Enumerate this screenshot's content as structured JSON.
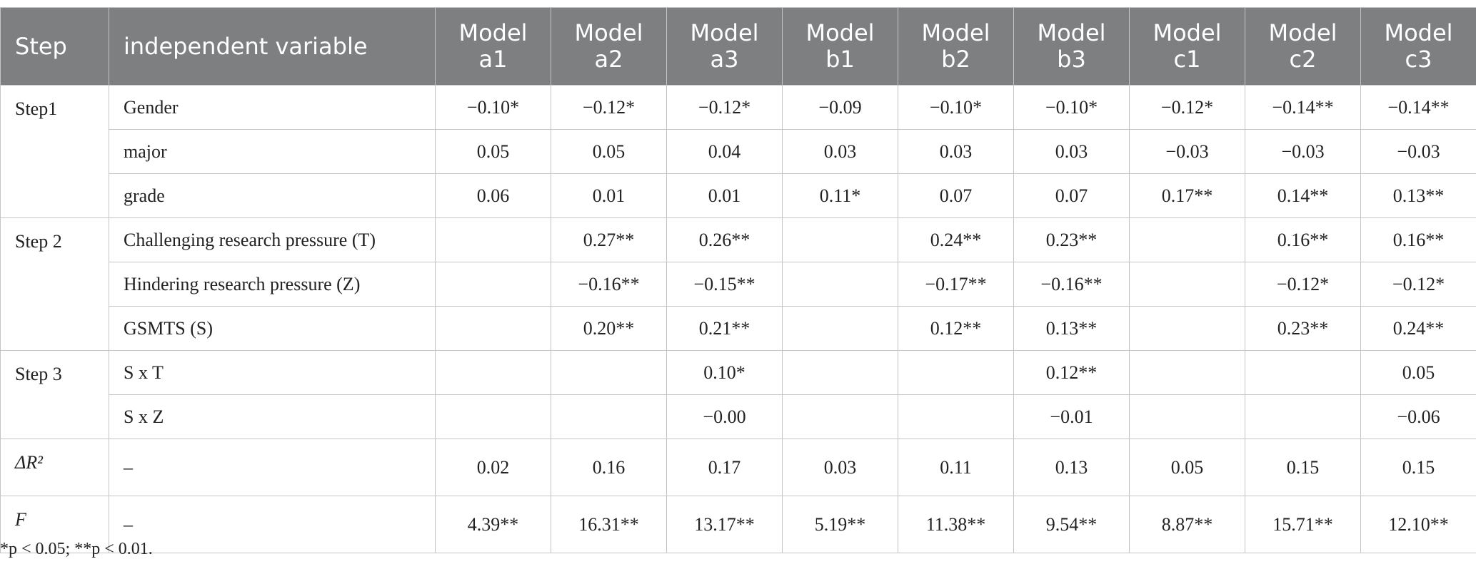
{
  "header": {
    "step": "Step",
    "variable": "independent variable",
    "models": [
      "Model a1",
      "Model a2",
      "Model a3",
      "Model b1",
      "Model b2",
      "Model b3",
      "Model c1",
      "Model c2",
      "Model c3"
    ]
  },
  "table": {
    "groups": [
      {
        "step": "Step1",
        "italic": false,
        "rows": [
          {
            "variable": "Gender",
            "values": [
              "−0.10*",
              "−0.12*",
              "−0.12*",
              "−0.09",
              "−0.10*",
              "−0.10*",
              "−0.12*",
              "−0.14**",
              "−0.14**"
            ]
          },
          {
            "variable": "major",
            "values": [
              "0.05",
              "0.05",
              "0.04",
              "0.03",
              "0.03",
              "0.03",
              "−0.03",
              "−0.03",
              "−0.03"
            ]
          },
          {
            "variable": "grade",
            "values": [
              "0.06",
              "0.01",
              "0.01",
              "0.11*",
              "0.07",
              "0.07",
              "0.17**",
              "0.14**",
              "0.13**"
            ]
          }
        ]
      },
      {
        "step": "Step 2",
        "italic": false,
        "rows": [
          {
            "variable": "Challenging research pressure (T)",
            "values": [
              null,
              "0.27**",
              "0.26**",
              null,
              "0.24**",
              "0.23**",
              null,
              "0.16**",
              "0.16**"
            ]
          },
          {
            "variable": "Hindering research pressure (Z)",
            "values": [
              null,
              "−0.16**",
              "−0.15**",
              null,
              "−0.17**",
              "−0.16**",
              null,
              "−0.12*",
              "−0.12*"
            ]
          },
          {
            "variable": "GSMTS (S)",
            "values": [
              null,
              "0.20**",
              "0.21**",
              null,
              "0.12**",
              "0.13**",
              null,
              "0.23**",
              "0.24**"
            ]
          }
        ]
      },
      {
        "step": "Step 3",
        "italic": false,
        "rows": [
          {
            "variable": "S x T",
            "values": [
              null,
              null,
              "0.10*",
              null,
              null,
              "0.12**",
              null,
              null,
              "0.05"
            ]
          },
          {
            "variable": "S x Z",
            "values": [
              null,
              null,
              "−0.00",
              null,
              null,
              "−0.01",
              null,
              null,
              "−0.06"
            ]
          }
        ]
      },
      {
        "step": "ΔR²",
        "italic": true,
        "rows": [
          {
            "variable": "–",
            "values": [
              "0.02",
              "0.16",
              "0.17",
              "0.03",
              "0.11",
              "0.13",
              "0.05",
              "0.15",
              "0.15"
            ]
          }
        ]
      },
      {
        "step": "F",
        "italic": true,
        "rows": [
          {
            "variable": "–",
            "values": [
              "4.39**",
              "16.31**",
              "13.17**",
              "5.19**",
              "11.38**",
              "9.54**",
              "8.87**",
              "15.71**",
              "12.10**"
            ]
          }
        ]
      }
    ]
  },
  "footnote": "*p < 0.05; **p < 0.01."
}
